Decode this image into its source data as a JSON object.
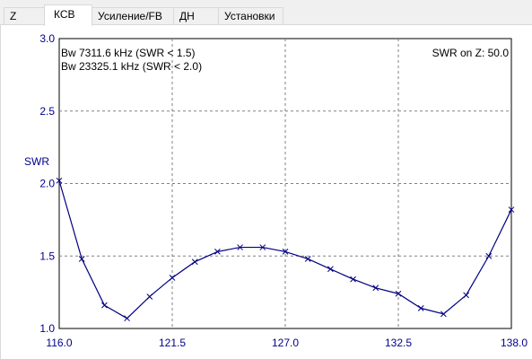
{
  "tabs": [
    {
      "label": "Z",
      "active": false
    },
    {
      "label": "КСВ",
      "active": true
    },
    {
      "label": "Усиление/FB",
      "active": false
    },
    {
      "label": "ДН",
      "active": false
    },
    {
      "label": "Установки",
      "active": false
    }
  ],
  "chart_data": {
    "type": "line",
    "ylabel": "SWR",
    "xlabel": "",
    "xlim": [
      116.0,
      138.0
    ],
    "ylim": [
      1.0,
      3.0
    ],
    "x_ticks": [
      "116.0",
      "121.5",
      "127.0",
      "132.5",
      "138.0"
    ],
    "y_ticks": [
      "1.0",
      "1.5",
      "2.0",
      "2.5",
      "3.0"
    ],
    "grid": true,
    "annotations": {
      "bw1": "Bw 7311.6 kHz (SWR < 1.5)",
      "bw2": "Bw 23325.1 kHz (SWR < 2.0)",
      "swr_on_z": "SWR on Z: 50.0"
    },
    "series": [
      {
        "color": "#000080",
        "marker": "x",
        "x": [
          116.0,
          117.1,
          118.2,
          119.3,
          120.4,
          121.5,
          122.6,
          123.7,
          124.8,
          125.9,
          127.0,
          128.1,
          129.2,
          130.3,
          131.4,
          132.5,
          133.6,
          134.7,
          135.8,
          136.9,
          138.0
        ],
        "y": [
          2.02,
          1.48,
          1.16,
          1.07,
          1.22,
          1.35,
          1.46,
          1.53,
          1.56,
          1.56,
          1.53,
          1.48,
          1.41,
          1.34,
          1.28,
          1.24,
          1.14,
          1.1,
          1.23,
          1.5,
          1.82
        ]
      }
    ]
  }
}
